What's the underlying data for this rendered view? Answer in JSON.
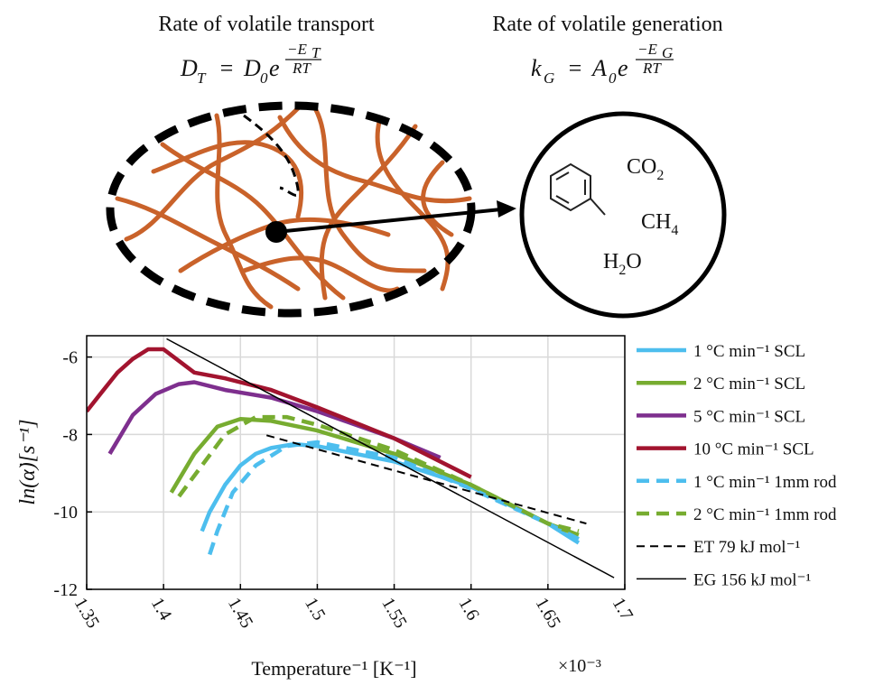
{
  "diagram": {
    "transport": {
      "label": "Rate of volatile transport",
      "symbol": "D",
      "symbol_sub": "T",
      "equals": "=",
      "factor": "D",
      "factor_sub": "0",
      "base": "e",
      "exp_num": "−E",
      "exp_num_sub": "T",
      "exp_den": "RT"
    },
    "generation": {
      "label": "Rate of volatile generation",
      "symbol": "k",
      "symbol_sub": "G",
      "equals": "=",
      "factor": "A",
      "factor_sub": "0",
      "base": "e",
      "exp_num": "−E",
      "exp_num_sub": "G",
      "exp_den": "RT"
    },
    "molecules": [
      {
        "text": "CO",
        "sub": "2",
        "tail": ""
      },
      {
        "text": "CH",
        "sub": "4",
        "tail": ""
      },
      {
        "text": "H",
        "sub": "2",
        "tail": "O"
      }
    ]
  },
  "chart_data": {
    "type": "line",
    "xlabel": "Temperature⁻¹ [K⁻¹]",
    "x_multiplier": "×10⁻³",
    "ylabel": "ln(α̇)[s⁻¹]",
    "xlim": [
      1.35,
      1.7
    ],
    "xticks": [
      1.35,
      1.4,
      1.45,
      1.5,
      1.55,
      1.6,
      1.65,
      1.7
    ],
    "ylim": [
      -12,
      -5.45
    ],
    "yticks": [
      -12,
      -10,
      -8,
      -6
    ],
    "grid": true,
    "legend": "outside-right",
    "series": [
      {
        "name": "1 °C min⁻¹ SCL",
        "color": "#4dbeee",
        "linestyle": "solid",
        "x": [
          1.425,
          1.43,
          1.44,
          1.45,
          1.46,
          1.47,
          1.485,
          1.5,
          1.55,
          1.6,
          1.65,
          1.67
        ],
        "values": [
          -10.5,
          -10.0,
          -9.3,
          -8.8,
          -8.5,
          -8.35,
          -8.25,
          -8.3,
          -8.7,
          -9.35,
          -10.3,
          -10.8
        ]
      },
      {
        "name": "2 °C min⁻¹ SCL",
        "color": "#77ac30",
        "linestyle": "solid",
        "x": [
          1.405,
          1.42,
          1.435,
          1.45,
          1.47,
          1.5,
          1.55,
          1.6,
          1.65,
          1.67
        ],
        "values": [
          -9.5,
          -8.5,
          -7.8,
          -7.6,
          -7.65,
          -7.9,
          -8.5,
          -9.3,
          -10.3,
          -10.6
        ]
      },
      {
        "name": "5 °C min⁻¹ SCL",
        "color": "#7e2f8e",
        "linestyle": "solid",
        "x": [
          1.365,
          1.38,
          1.395,
          1.41,
          1.42,
          1.44,
          1.47,
          1.5,
          1.55,
          1.58
        ],
        "values": [
          -8.5,
          -7.5,
          -6.95,
          -6.7,
          -6.65,
          -6.85,
          -7.05,
          -7.4,
          -8.1,
          -8.6
        ]
      },
      {
        "name": "10 °C min⁻¹ SCL",
        "color": "#a2142f",
        "linestyle": "solid",
        "x": [
          1.35,
          1.36,
          1.37,
          1.38,
          1.39,
          1.4,
          1.41,
          1.42,
          1.44,
          1.47,
          1.5,
          1.55,
          1.6
        ],
        "values": [
          -7.4,
          -6.9,
          -6.4,
          -6.05,
          -5.8,
          -5.8,
          -6.1,
          -6.4,
          -6.55,
          -6.85,
          -7.3,
          -8.1,
          -9.1
        ]
      },
      {
        "name": "1 °C min⁻¹ 1mm rod",
        "color": "#4dbeee",
        "linestyle": "dashed",
        "x": [
          1.43,
          1.435,
          1.445,
          1.46,
          1.48,
          1.5,
          1.55,
          1.6,
          1.65,
          1.67
        ],
        "values": [
          -11.1,
          -10.5,
          -9.5,
          -8.8,
          -8.3,
          -8.2,
          -8.6,
          -9.4,
          -10.3,
          -10.7
        ]
      },
      {
        "name": "2 °C min⁻¹ 1mm rod",
        "color": "#77ac30",
        "linestyle": "dashed",
        "x": [
          1.41,
          1.425,
          1.44,
          1.46,
          1.48,
          1.5,
          1.55,
          1.6,
          1.65,
          1.67
        ],
        "values": [
          -9.6,
          -8.8,
          -8.0,
          -7.55,
          -7.55,
          -7.75,
          -8.4,
          -9.3,
          -10.3,
          -10.5
        ]
      },
      {
        "name": "ET 79 kJ mol⁻¹",
        "color": "#000000",
        "linestyle": "dashed",
        "x": [
          1.467,
          1.675
        ],
        "values": [
          -8.02,
          -10.3
        ]
      },
      {
        "name": "EG 156 kJ mol⁻¹",
        "color": "#000000",
        "linestyle": "thin",
        "x": [
          1.402,
          1.693
        ],
        "values": [
          -5.53,
          -11.7
        ]
      }
    ]
  }
}
